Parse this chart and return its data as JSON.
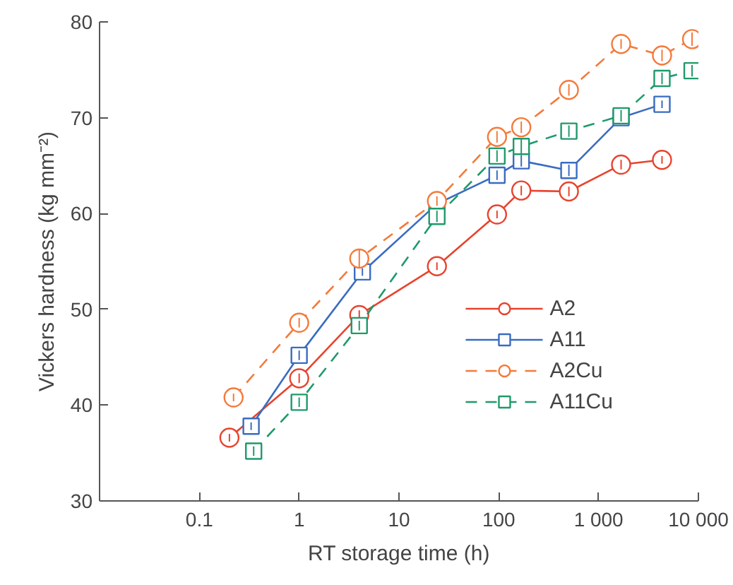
{
  "chart_data": {
    "type": "line",
    "xlabel": "RT storage time (h)",
    "ylabel": "Vickers hardness (kg mm⁻²)",
    "log": "x",
    "xlim": [
      0.01,
      10000
    ],
    "xticks": [
      0.1,
      1,
      10,
      100,
      {
        "value": 1000,
        "label": "1 000"
      },
      {
        "value": 10000,
        "label": "10 000"
      }
    ],
    "ylim": [
      30,
      80
    ],
    "yticks": [
      30,
      40,
      50,
      60,
      70,
      80
    ],
    "grid": false,
    "legend": "bottom right",
    "series": [
      {
        "name": "A2",
        "color": "#e8432e",
        "marker": "circle",
        "line_style": "solid",
        "x": [
          0.2,
          1,
          4,
          24,
          96,
          168,
          504,
          1680,
          4320
        ],
        "values": [
          36.6,
          42.8,
          49.4,
          54.5,
          59.9,
          62.4,
          62.3,
          65.1,
          65.6
        ],
        "errors": [
          0.4,
          0.5,
          0.5,
          0.4,
          0.4,
          0.5,
          0.5,
          0.5,
          0.4
        ]
      },
      {
        "name": "A11",
        "color": "#3a6cc0",
        "marker": "square",
        "line_style": "solid",
        "x": [
          0.33,
          1,
          4.3,
          24,
          96,
          168,
          504,
          1680,
          4320
        ],
        "values": [
          37.8,
          45.2,
          53.9,
          61.0,
          64.0,
          65.5,
          64.5,
          70.0,
          71.4
        ],
        "errors": [
          0.4,
          0.5,
          0.4,
          null,
          0.5,
          0.6,
          0.6,
          0.5,
          0.4
        ]
      },
      {
        "name": "A2Cu",
        "color": "#f47a3a",
        "marker": "circle",
        "line_style": "dashed",
        "x": [
          0.22,
          1,
          4,
          24,
          96,
          168,
          504,
          1680,
          4320,
          8640
        ],
        "values": [
          40.8,
          48.6,
          55.3,
          61.3,
          68.0,
          69.0,
          72.9,
          77.7,
          76.5,
          78.2
        ],
        "errors": [
          0.4,
          0.5,
          1.0,
          0.5,
          0.6,
          0.6,
          0.6,
          0.5,
          0.6,
          0.7
        ]
      },
      {
        "name": "A11Cu",
        "color": "#1f9a6a",
        "marker": "square",
        "line_style": "dashed",
        "x": [
          0.35,
          1,
          4,
          24,
          96,
          168,
          504,
          1680,
          4320,
          8640
        ],
        "values": [
          35.2,
          40.3,
          48.3,
          59.7,
          66.0,
          67.0,
          68.6,
          70.2,
          74.1,
          74.9
        ],
        "errors": [
          0.5,
          0.5,
          0.5,
          0.6,
          0.6,
          0.8,
          0.6,
          0.6,
          0.6,
          0.6
        ]
      }
    ]
  }
}
